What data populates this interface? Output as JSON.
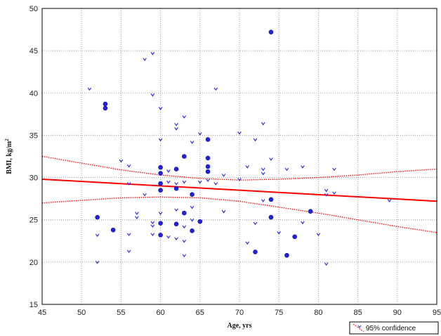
{
  "chart_data": {
    "type": "scatter",
    "title": "",
    "xlabel": "Age, yrs",
    "ylabel_main": "BMI, kg/m",
    "ylabel_sup": "2",
    "xlim": [
      45,
      95
    ],
    "ylim": [
      15,
      50
    ],
    "xticks": [
      45,
      50,
      55,
      60,
      65,
      70,
      75,
      80,
      85,
      90,
      95
    ],
    "yticks": [
      15,
      20,
      25,
      30,
      35,
      40,
      45,
      50
    ],
    "grid": true,
    "legend": {
      "placement": "bottom-right",
      "label": "95% confidence"
    },
    "colors": {
      "points": "#2222dd",
      "fit": "#ff0000",
      "frame": "#000000",
      "grid": "#999999"
    },
    "fit_line": {
      "x": [
        45,
        95
      ],
      "y": [
        29.8,
        27.2
      ]
    },
    "ci_upper": [
      [
        45,
        32.5
      ],
      [
        50,
        31.7
      ],
      [
        55,
        30.9
      ],
      [
        60,
        30.3
      ],
      [
        65,
        29.9
      ],
      [
        70,
        29.7
      ],
      [
        75,
        29.8
      ],
      [
        80,
        30.0
      ],
      [
        85,
        30.3
      ],
      [
        90,
        30.7
      ],
      [
        95,
        31.0
      ]
    ],
    "ci_lower": [
      [
        45,
        27.0
      ],
      [
        50,
        27.3
      ],
      [
        55,
        27.6
      ],
      [
        60,
        27.7
      ],
      [
        65,
        27.6
      ],
      [
        70,
        27.2
      ],
      [
        75,
        26.5
      ],
      [
        80,
        25.8
      ],
      [
        85,
        25.0
      ],
      [
        90,
        24.2
      ],
      [
        95,
        23.5
      ]
    ],
    "points": [
      {
        "x": 51,
        "y": 40.5,
        "s": 1
      },
      {
        "x": 52,
        "y": 25.3,
        "s": 2
      },
      {
        "x": 52,
        "y": 23.2,
        "s": 1
      },
      {
        "x": 52,
        "y": 20.0,
        "s": 1
      },
      {
        "x": 53,
        "y": 38.7,
        "s": 2
      },
      {
        "x": 53,
        "y": 38.2,
        "s": 2
      },
      {
        "x": 54,
        "y": 23.8,
        "s": 2
      },
      {
        "x": 55,
        "y": 32.0,
        "s": 1
      },
      {
        "x": 56,
        "y": 31.4,
        "s": 1
      },
      {
        "x": 56,
        "y": 29.3,
        "s": 1
      },
      {
        "x": 56,
        "y": 23.3,
        "s": 1
      },
      {
        "x": 56,
        "y": 21.3,
        "s": 1
      },
      {
        "x": 57,
        "y": 25.8,
        "s": 1
      },
      {
        "x": 57,
        "y": 25.3,
        "s": 1
      },
      {
        "x": 58,
        "y": 44.0,
        "s": 1
      },
      {
        "x": 58,
        "y": 28.0,
        "s": 1
      },
      {
        "x": 59,
        "y": 44.7,
        "s": 1
      },
      {
        "x": 59,
        "y": 39.8,
        "s": 1
      },
      {
        "x": 59,
        "y": 24.7,
        "s": 1
      },
      {
        "x": 59,
        "y": 24.3,
        "s": 1
      },
      {
        "x": 59,
        "y": 23.3,
        "s": 1
      },
      {
        "x": 60,
        "y": 38.2,
        "s": 1
      },
      {
        "x": 60,
        "y": 34.5,
        "s": 1
      },
      {
        "x": 60,
        "y": 31.2,
        "s": 2
      },
      {
        "x": 60,
        "y": 30.5,
        "s": 2
      },
      {
        "x": 60,
        "y": 29.3,
        "s": 2
      },
      {
        "x": 60,
        "y": 28.5,
        "s": 2
      },
      {
        "x": 60,
        "y": 25.8,
        "s": 1
      },
      {
        "x": 60,
        "y": 24.6,
        "s": 2
      },
      {
        "x": 60,
        "y": 23.2,
        "s": 2
      },
      {
        "x": 61,
        "y": 30.8,
        "s": 1
      },
      {
        "x": 61,
        "y": 29.5,
        "s": 1
      },
      {
        "x": 61,
        "y": 23.0,
        "s": 1
      },
      {
        "x": 62,
        "y": 36.3,
        "s": 1
      },
      {
        "x": 62,
        "y": 35.8,
        "s": 1
      },
      {
        "x": 62,
        "y": 31.0,
        "s": 2
      },
      {
        "x": 62,
        "y": 29.3,
        "s": 1
      },
      {
        "x": 62,
        "y": 28.7,
        "s": 2
      },
      {
        "x": 62,
        "y": 26.2,
        "s": 1
      },
      {
        "x": 62,
        "y": 24.5,
        "s": 2
      },
      {
        "x": 62,
        "y": 22.8,
        "s": 1
      },
      {
        "x": 63,
        "y": 37.2,
        "s": 1
      },
      {
        "x": 63,
        "y": 32.5,
        "s": 2
      },
      {
        "x": 63,
        "y": 29.5,
        "s": 1
      },
      {
        "x": 63,
        "y": 25.8,
        "s": 2
      },
      {
        "x": 63,
        "y": 24.2,
        "s": 1
      },
      {
        "x": 63,
        "y": 22.5,
        "s": 1
      },
      {
        "x": 63,
        "y": 20.8,
        "s": 1
      },
      {
        "x": 64,
        "y": 34.2,
        "s": 1
      },
      {
        "x": 64,
        "y": 28.0,
        "s": 2
      },
      {
        "x": 64,
        "y": 26.5,
        "s": 1
      },
      {
        "x": 64,
        "y": 25.0,
        "s": 1
      },
      {
        "x": 64,
        "y": 23.7,
        "s": 2
      },
      {
        "x": 65,
        "y": 35.2,
        "s": 1
      },
      {
        "x": 65,
        "y": 29.5,
        "s": 1
      },
      {
        "x": 65,
        "y": 24.8,
        "s": 2
      },
      {
        "x": 66,
        "y": 34.5,
        "s": 2
      },
      {
        "x": 66,
        "y": 32.3,
        "s": 2
      },
      {
        "x": 66,
        "y": 31.3,
        "s": 2
      },
      {
        "x": 66,
        "y": 30.7,
        "s": 2
      },
      {
        "x": 66,
        "y": 29.7,
        "s": 1
      },
      {
        "x": 67,
        "y": 40.5,
        "s": 1
      },
      {
        "x": 67,
        "y": 29.3,
        "s": 1
      },
      {
        "x": 68,
        "y": 30.3,
        "s": 1
      },
      {
        "x": 68,
        "y": 26.0,
        "s": 1
      },
      {
        "x": 70,
        "y": 35.3,
        "s": 1
      },
      {
        "x": 70,
        "y": 29.8,
        "s": 1
      },
      {
        "x": 71,
        "y": 31.3,
        "s": 1
      },
      {
        "x": 71,
        "y": 22.3,
        "s": 1
      },
      {
        "x": 72,
        "y": 34.5,
        "s": 1
      },
      {
        "x": 72,
        "y": 24.6,
        "s": 1
      },
      {
        "x": 72,
        "y": 21.2,
        "s": 2
      },
      {
        "x": 73,
        "y": 36.4,
        "s": 1
      },
      {
        "x": 73,
        "y": 31.0,
        "s": 1
      },
      {
        "x": 73,
        "y": 30.5,
        "s": 1
      },
      {
        "x": 73,
        "y": 27.3,
        "s": 1
      },
      {
        "x": 74,
        "y": 47.2,
        "s": 2
      },
      {
        "x": 74,
        "y": 32.2,
        "s": 1
      },
      {
        "x": 74,
        "y": 27.4,
        "s": 2
      },
      {
        "x": 74,
        "y": 25.3,
        "s": 2
      },
      {
        "x": 75,
        "y": 23.5,
        "s": 1
      },
      {
        "x": 76,
        "y": 31.0,
        "s": 1
      },
      {
        "x": 76,
        "y": 20.8,
        "s": 2
      },
      {
        "x": 77,
        "y": 23.0,
        "s": 2
      },
      {
        "x": 78,
        "y": 31.3,
        "s": 1
      },
      {
        "x": 78,
        "y": 24.7,
        "s": 1
      },
      {
        "x": 79,
        "y": 26.0,
        "s": 2
      },
      {
        "x": 80,
        "y": 23.3,
        "s": 1
      },
      {
        "x": 81,
        "y": 28.5,
        "s": 1
      },
      {
        "x": 81,
        "y": 28.0,
        "s": 1
      },
      {
        "x": 81,
        "y": 19.8,
        "s": 1
      },
      {
        "x": 82,
        "y": 31.0,
        "s": 1
      },
      {
        "x": 82,
        "y": 28.2,
        "s": 1
      },
      {
        "x": 89,
        "y": 27.3,
        "s": 1
      }
    ]
  }
}
